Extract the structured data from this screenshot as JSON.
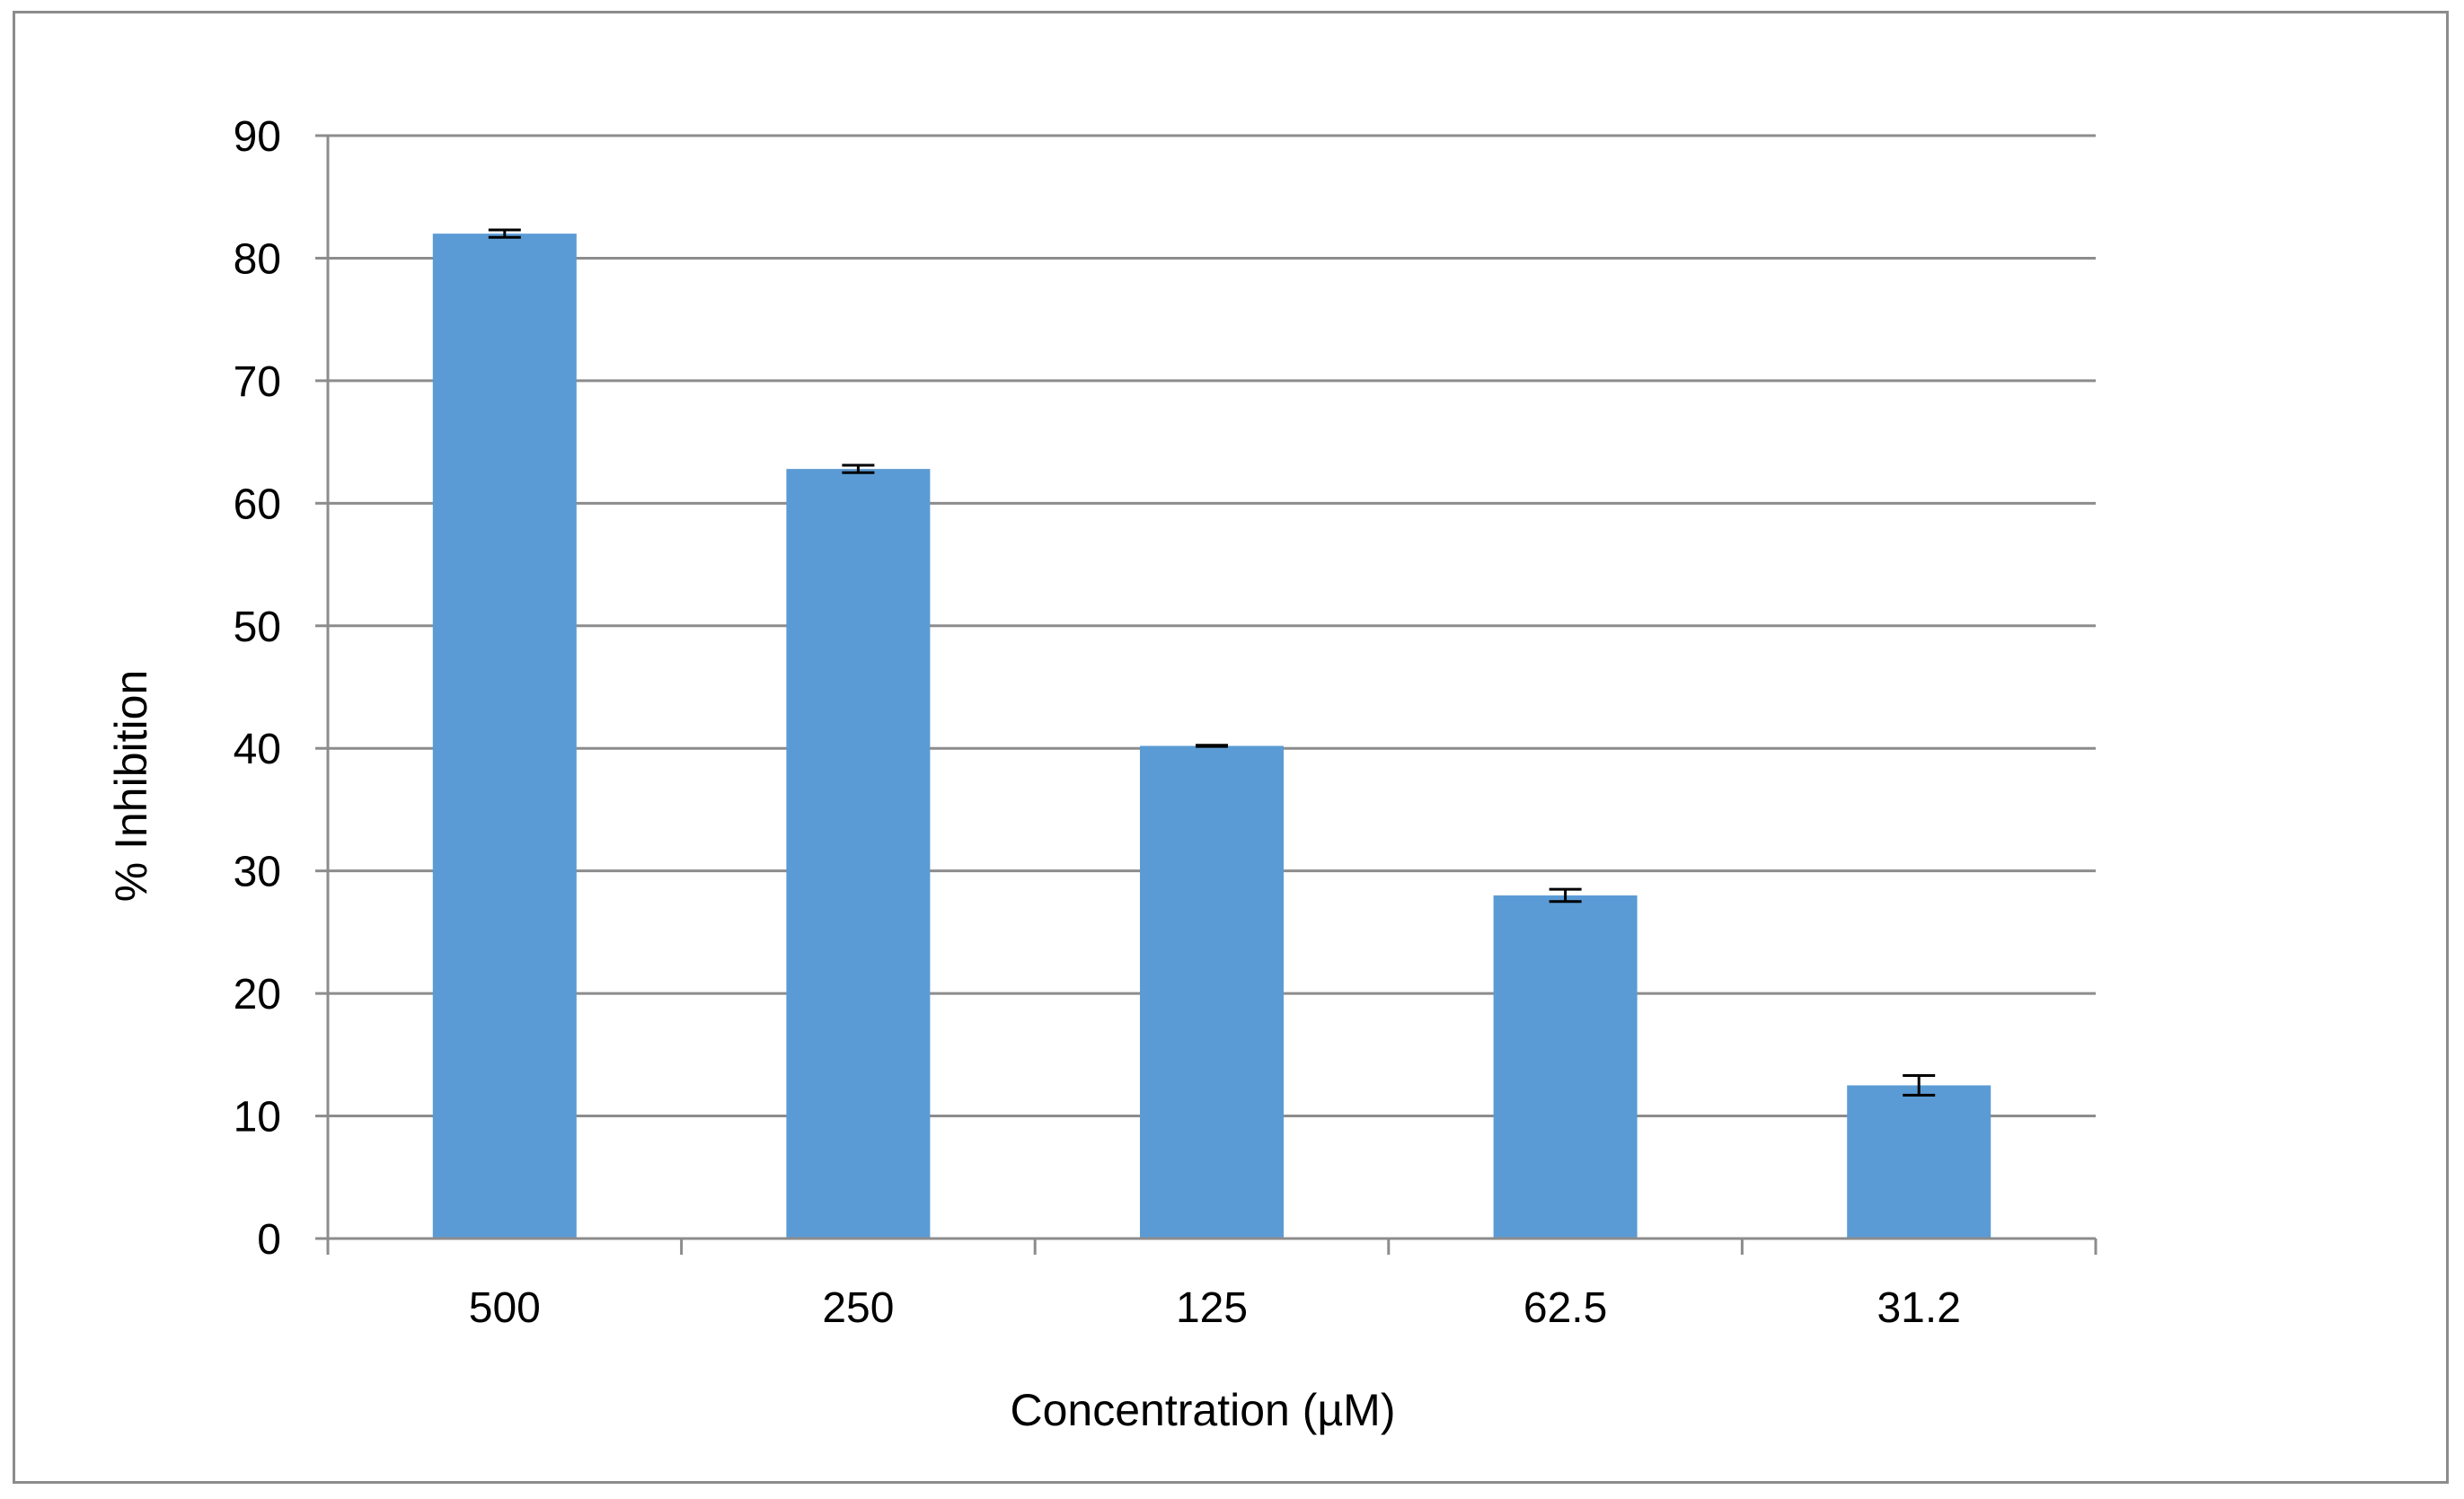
{
  "chart_data": {
    "type": "bar",
    "title": "",
    "xlabel": "Concentration (µM)",
    "ylabel": "% Inhibition",
    "categories": [
      "500",
      "250",
      "125",
      "62.5",
      "31.2"
    ],
    "values": [
      82.0,
      62.8,
      40.2,
      28.0,
      12.5
    ],
    "errors": [
      0.3,
      0.3,
      0.05,
      0.5,
      0.8
    ],
    "ylim": [
      0,
      90
    ],
    "yticks": [
      "0",
      "10",
      "20",
      "30",
      "40",
      "50",
      "60",
      "70",
      "80",
      "90"
    ],
    "grid": true,
    "legend": "none",
    "bar_color": "#5b9bd5",
    "grid_color": "#8c8c8c"
  }
}
